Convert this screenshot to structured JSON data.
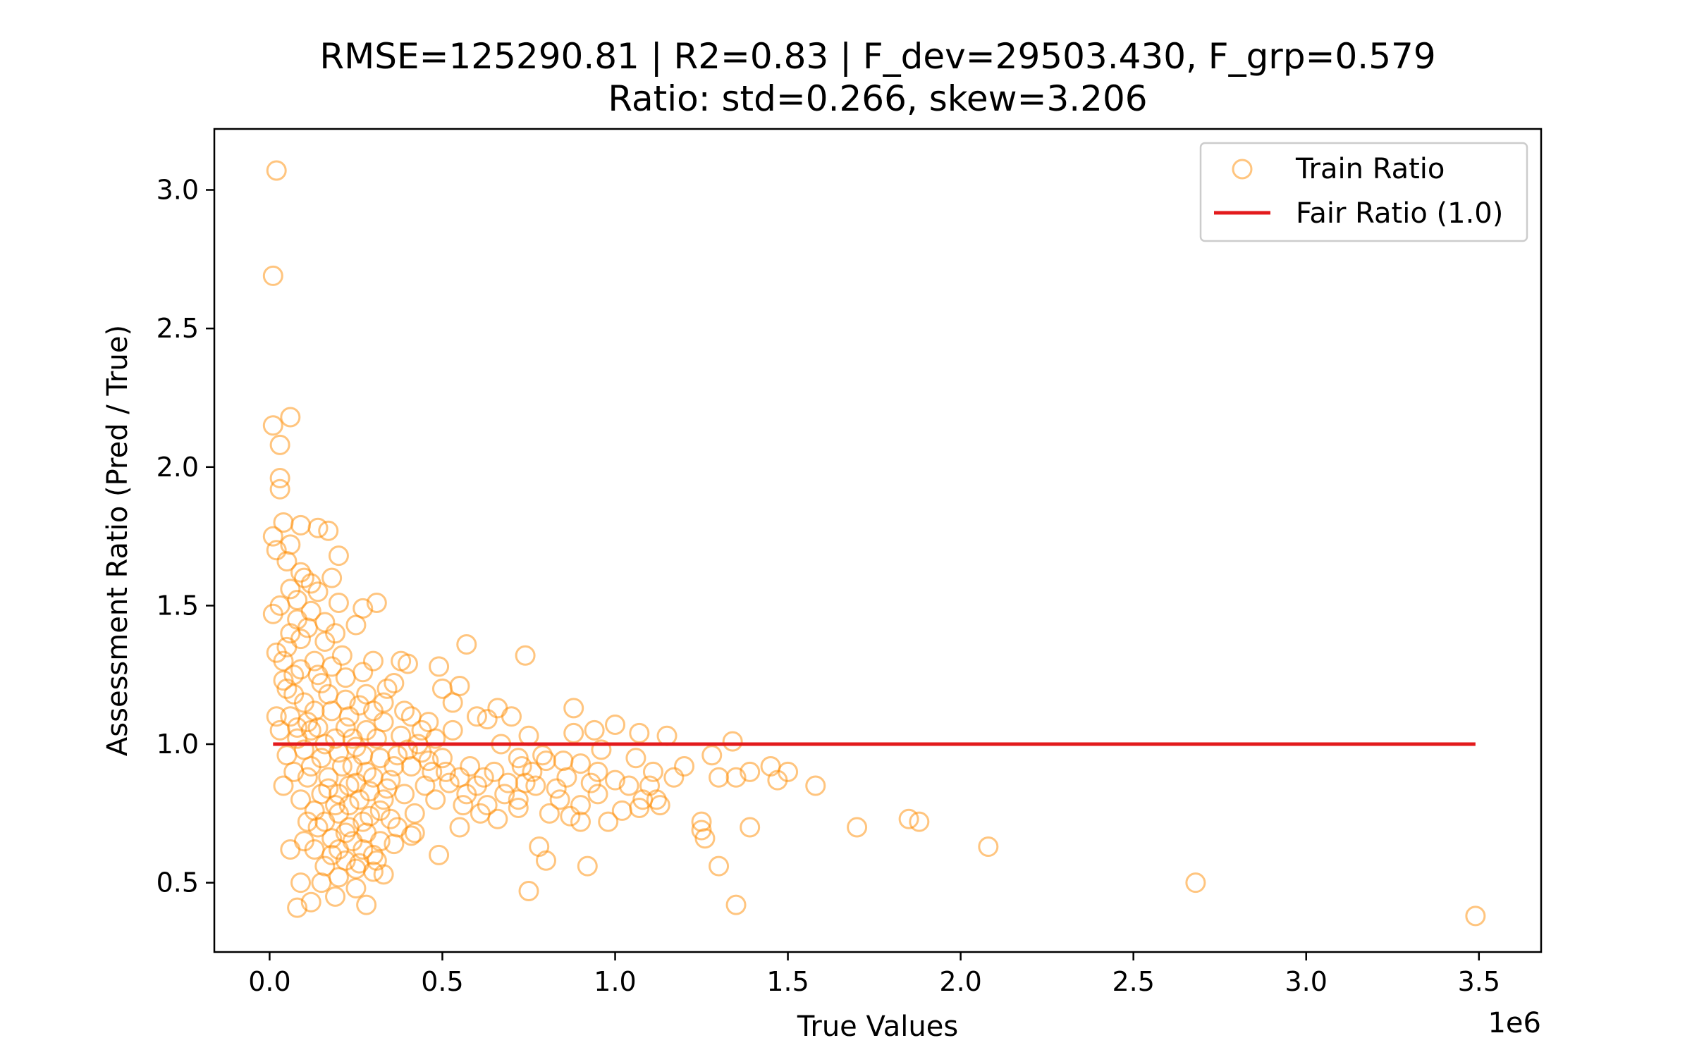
{
  "chart_data": {
    "type": "scatter",
    "title_line1": "RMSE=125290.81 | R2=0.83 | F_dev=29503.430, F_grp=0.579",
    "title_line2": "Ratio: std=0.266, skew=3.206",
    "xlabel": "True Values",
    "ylabel": "Assessment Ratio (Pred / True)",
    "x_offset_label": "1e6",
    "xlim": [
      -0.16,
      3.68
    ],
    "ylim": [
      0.25,
      3.22
    ],
    "x_ticks": [
      {
        "value": 0.0,
        "label": "0.0"
      },
      {
        "value": 0.5,
        "label": "0.5"
      },
      {
        "value": 1.0,
        "label": "1.0"
      },
      {
        "value": 1.5,
        "label": "1.5"
      },
      {
        "value": 2.0,
        "label": "2.0"
      },
      {
        "value": 2.5,
        "label": "2.5"
      },
      {
        "value": 3.0,
        "label": "3.0"
      },
      {
        "value": 3.5,
        "label": "3.5"
      }
    ],
    "y_ticks": [
      {
        "value": 0.5,
        "label": "0.5"
      },
      {
        "value": 1.0,
        "label": "1.0"
      },
      {
        "value": 1.5,
        "label": "1.5"
      },
      {
        "value": 2.0,
        "label": "2.0"
      },
      {
        "value": 2.5,
        "label": "2.5"
      },
      {
        "value": 3.0,
        "label": "3.0"
      }
    ],
    "grid": false,
    "legend": {
      "placement": "upper right",
      "entries": [
        {
          "name": "Train Ratio",
          "marker": "circle-open",
          "color": "#ff8c00"
        },
        {
          "name": "Fair Ratio (1.0)",
          "marker": "line",
          "color": "#e31a1c"
        }
      ]
    },
    "series": [
      {
        "name": "Train Ratio",
        "kind": "scatter",
        "color": "#ff8c00",
        "points": [
          [
            0.02,
            3.07
          ],
          [
            0.01,
            2.69
          ],
          [
            0.01,
            2.15
          ],
          [
            0.06,
            2.18
          ],
          [
            0.03,
            2.08
          ],
          [
            0.03,
            1.96
          ],
          [
            0.03,
            1.92
          ],
          [
            0.01,
            1.75
          ],
          [
            0.04,
            1.8
          ],
          [
            0.06,
            1.72
          ],
          [
            0.09,
            1.79
          ],
          [
            0.14,
            1.78
          ],
          [
            0.17,
            1.77
          ],
          [
            0.2,
            1.68
          ],
          [
            0.02,
            1.7
          ],
          [
            0.05,
            1.66
          ],
          [
            0.1,
            1.6
          ],
          [
            0.18,
            1.6
          ],
          [
            0.03,
            1.5
          ],
          [
            0.08,
            1.52
          ],
          [
            0.12,
            1.58
          ],
          [
            0.2,
            1.51
          ],
          [
            0.27,
            1.49
          ],
          [
            0.31,
            1.51
          ],
          [
            0.25,
            1.43
          ],
          [
            0.01,
            1.47
          ],
          [
            0.06,
            1.4
          ],
          [
            0.11,
            1.42
          ],
          [
            0.16,
            1.37
          ],
          [
            0.3,
            1.3
          ],
          [
            0.38,
            1.3
          ],
          [
            0.4,
            1.29
          ],
          [
            0.49,
            1.28
          ],
          [
            0.57,
            1.36
          ],
          [
            0.74,
            1.32
          ],
          [
            0.02,
            1.33
          ],
          [
            0.04,
            1.3
          ],
          [
            0.09,
            1.27
          ],
          [
            0.14,
            1.25
          ],
          [
            0.22,
            1.24
          ],
          [
            0.36,
            1.22
          ],
          [
            0.5,
            1.2
          ],
          [
            0.55,
            1.21
          ],
          [
            0.53,
            1.15
          ],
          [
            0.6,
            1.1
          ],
          [
            0.63,
            1.09
          ],
          [
            0.66,
            1.13
          ],
          [
            0.7,
            1.1
          ],
          [
            0.88,
            1.13
          ],
          [
            1.0,
            1.07
          ],
          [
            1.07,
            1.04
          ],
          [
            1.15,
            1.03
          ],
          [
            1.34,
            1.01
          ],
          [
            0.75,
            1.03
          ],
          [
            0.88,
            1.04
          ],
          [
            0.94,
            1.05
          ],
          [
            0.05,
            1.2
          ],
          [
            0.1,
            1.15
          ],
          [
            0.13,
            1.12
          ],
          [
            0.17,
            1.18
          ],
          [
            0.23,
            1.1
          ],
          [
            0.3,
            1.12
          ],
          [
            0.41,
            1.1
          ],
          [
            0.46,
            1.08
          ],
          [
            0.53,
            1.05
          ],
          [
            0.67,
            1.0
          ],
          [
            0.72,
            0.95
          ],
          [
            0.79,
            0.96
          ],
          [
            0.85,
            0.94
          ],
          [
            0.9,
            0.93
          ],
          [
            0.96,
            0.98
          ],
          [
            1.06,
            0.95
          ],
          [
            1.11,
            0.9
          ],
          [
            1.2,
            0.92
          ],
          [
            1.28,
            0.96
          ],
          [
            1.39,
            0.9
          ],
          [
            1.45,
            0.92
          ],
          [
            1.5,
            0.9
          ],
          [
            1.3,
            0.88
          ],
          [
            1.35,
            0.88
          ],
          [
            1.1,
            0.85
          ],
          [
            1.0,
            0.87
          ],
          [
            0.93,
            0.86
          ],
          [
            0.84,
            0.8
          ],
          [
            0.77,
            0.85
          ],
          [
            0.72,
            0.8
          ],
          [
            0.63,
            0.78
          ],
          [
            0.56,
            0.78
          ],
          [
            0.48,
            0.8
          ],
          [
            0.42,
            0.75
          ],
          [
            0.37,
            0.7
          ],
          [
            0.32,
            0.65
          ],
          [
            0.3,
            0.6
          ],
          [
            0.25,
            0.55
          ],
          [
            0.2,
            0.52
          ],
          [
            0.15,
            0.5
          ],
          [
            0.09,
            0.5
          ],
          [
            0.08,
            0.41
          ],
          [
            0.12,
            0.43
          ],
          [
            0.19,
            0.45
          ],
          [
            0.25,
            0.48
          ],
          [
            0.28,
            0.42
          ],
          [
            0.33,
            0.53
          ],
          [
            0.3,
            0.54
          ],
          [
            0.49,
            0.6
          ],
          [
            0.41,
            0.67
          ],
          [
            0.55,
            0.7
          ],
          [
            0.66,
            0.73
          ],
          [
            0.72,
            0.77
          ],
          [
            0.81,
            0.75
          ],
          [
            0.87,
            0.74
          ],
          [
            0.9,
            0.78
          ],
          [
            0.9,
            0.72
          ],
          [
            0.98,
            0.72
          ],
          [
            1.07,
            0.77
          ],
          [
            1.13,
            0.78
          ],
          [
            1.25,
            0.72
          ],
          [
            1.25,
            0.69
          ],
          [
            1.26,
            0.66
          ],
          [
            1.39,
            0.7
          ],
          [
            1.7,
            0.7
          ],
          [
            1.85,
            0.73
          ],
          [
            1.88,
            0.72
          ],
          [
            2.08,
            0.63
          ],
          [
            1.58,
            0.85
          ],
          [
            1.47,
            0.87
          ],
          [
            0.78,
            0.63
          ],
          [
            0.8,
            0.58
          ],
          [
            0.92,
            0.56
          ],
          [
            0.75,
            0.47
          ],
          [
            1.3,
            0.56
          ],
          [
            1.35,
            0.42
          ],
          [
            2.68,
            0.5
          ],
          [
            3.49,
            0.38
          ],
          [
            0.06,
            0.62
          ],
          [
            0.1,
            0.65
          ],
          [
            0.14,
            0.7
          ],
          [
            0.18,
            0.6
          ],
          [
            0.22,
            0.68
          ],
          [
            0.27,
            0.72
          ],
          [
            0.04,
            0.85
          ],
          [
            0.07,
            0.9
          ],
          [
            0.11,
            0.88
          ],
          [
            0.15,
            0.82
          ],
          [
            0.19,
            0.78
          ],
          [
            0.23,
            0.85
          ],
          [
            0.28,
            0.9
          ],
          [
            0.32,
            0.95
          ],
          [
            0.36,
            0.92
          ],
          [
            0.4,
            0.98
          ],
          [
            0.44,
            0.97
          ],
          [
            0.5,
            0.95
          ],
          [
            0.58,
            0.92
          ],
          [
            0.62,
            0.88
          ],
          [
            0.03,
            1.05
          ],
          [
            0.06,
            1.1
          ],
          [
            0.08,
            1.02
          ],
          [
            0.12,
            1.05
          ],
          [
            0.16,
            1.0
          ],
          [
            0.2,
            0.97
          ],
          [
            0.24,
            1.02
          ],
          [
            0.28,
            1.05
          ],
          [
            0.33,
            1.08
          ],
          [
            0.38,
            1.03
          ],
          [
            0.43,
            1.0
          ],
          [
            0.47,
            0.9
          ],
          [
            0.52,
            0.86
          ],
          [
            0.57,
            0.82
          ],
          [
            0.15,
            0.95
          ],
          [
            0.17,
            0.88
          ],
          [
            0.21,
            0.92
          ],
          [
            0.25,
            0.86
          ],
          [
            0.29,
            0.83
          ],
          [
            0.33,
            0.8
          ],
          [
            0.35,
            0.87
          ],
          [
            0.13,
            0.76
          ],
          [
            0.16,
            0.72
          ],
          [
            0.2,
            0.75
          ],
          [
            0.24,
            0.65
          ],
          [
            0.27,
            0.62
          ],
          [
            0.18,
            0.66
          ],
          [
            0.22,
            0.58
          ],
          [
            0.26,
            0.57
          ],
          [
            0.31,
            0.58
          ],
          [
            0.35,
            0.73
          ],
          [
            0.39,
            0.82
          ],
          [
            0.45,
            0.85
          ],
          [
            0.05,
            1.35
          ],
          [
            0.09,
            1.38
          ],
          [
            0.13,
            1.3
          ],
          [
            0.18,
            1.28
          ],
          [
            0.21,
            1.32
          ],
          [
            0.27,
            1.26
          ],
          [
            0.34,
            1.2
          ],
          [
            0.08,
            1.45
          ],
          [
            0.12,
            1.48
          ],
          [
            0.16,
            1.44
          ],
          [
            0.19,
            1.4
          ],
          [
            0.06,
            1.56
          ],
          [
            0.09,
            1.62
          ],
          [
            0.14,
            1.55
          ],
          [
            0.04,
            1.23
          ],
          [
            0.07,
            1.18
          ],
          [
            0.11,
            1.08
          ],
          [
            0.1,
            0.98
          ],
          [
            0.14,
            1.06
          ],
          [
            0.18,
            1.12
          ],
          [
            0.22,
            1.16
          ],
          [
            0.26,
            1.14
          ],
          [
            0.31,
            1.02
          ],
          [
            0.37,
            0.96
          ],
          [
            0.41,
            0.92
          ],
          [
            0.46,
            0.94
          ],
          [
            0.51,
            0.9
          ],
          [
            0.55,
            0.88
          ],
          [
            0.6,
            0.85
          ],
          [
            0.65,
            0.9
          ],
          [
            0.69,
            0.86
          ],
          [
            0.73,
            0.92
          ],
          [
            0.76,
            0.9
          ],
          [
            0.8,
            0.94
          ],
          [
            0.83,
            0.84
          ],
          [
            0.86,
            0.88
          ],
          [
            0.95,
            0.9
          ],
          [
            1.04,
            0.85
          ],
          [
            1.12,
            0.8
          ],
          [
            1.17,
            0.88
          ],
          [
            1.08,
            0.8
          ],
          [
            1.02,
            0.76
          ],
          [
            0.95,
            0.82
          ],
          [
            0.61,
            0.75
          ],
          [
            0.68,
            0.82
          ],
          [
            0.74,
            0.86
          ],
          [
            0.2,
            0.82
          ],
          [
            0.23,
            0.78
          ],
          [
            0.26,
            0.8
          ],
          [
            0.29,
            0.74
          ],
          [
            0.32,
            0.76
          ],
          [
            0.17,
            0.84
          ],
          [
            0.24,
            0.92
          ],
          [
            0.27,
            0.96
          ],
          [
            0.3,
            0.88
          ],
          [
            0.34,
            0.84
          ],
          [
            0.22,
            1.06
          ],
          [
            0.25,
            0.99
          ],
          [
            0.19,
            1.02
          ],
          [
            0.12,
            0.92
          ],
          [
            0.09,
            0.8
          ],
          [
            0.11,
            0.72
          ],
          [
            0.13,
            0.62
          ],
          [
            0.16,
            0.56
          ],
          [
            0.2,
            0.62
          ],
          [
            0.23,
            0.7
          ],
          [
            0.28,
            0.68
          ],
          [
            0.36,
            0.64
          ],
          [
            0.42,
            0.68
          ],
          [
            0.05,
            0.96
          ],
          [
            0.08,
            1.06
          ],
          [
            0.02,
            1.1
          ],
          [
            0.07,
            1.25
          ],
          [
            0.15,
            1.22
          ],
          [
            0.28,
            1.18
          ],
          [
            0.33,
            1.15
          ],
          [
            0.39,
            1.12
          ],
          [
            0.44,
            1.05
          ],
          [
            0.48,
            1.02
          ]
        ]
      },
      {
        "name": "Fair Ratio (1.0)",
        "kind": "line",
        "color": "#e31a1c",
        "points": [
          [
            0.01,
            1.0
          ],
          [
            3.49,
            1.0
          ]
        ]
      }
    ]
  }
}
